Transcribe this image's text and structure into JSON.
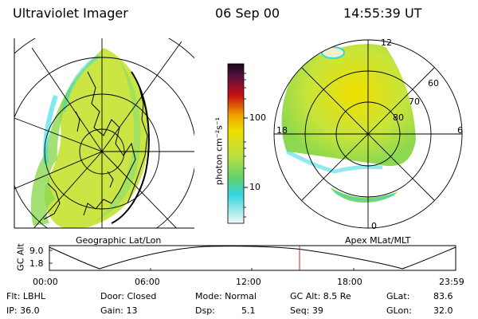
{
  "header": {
    "instrument": "Ultraviolet Imager",
    "date": "06 Sep 00",
    "time": "14:55:39 UT"
  },
  "colorbar": {
    "unit_label": "photon cm⁻²s⁻¹",
    "ticks": [
      "100",
      "10"
    ],
    "colors": {
      "top": "#1a0a1a",
      "red": "#c81010",
      "orange": "#f0a000",
      "yellow": "#f0e000",
      "green": "#b8e040",
      "cyan": "#30d8e0",
      "white": "#e8f4f4"
    }
  },
  "left_map": {
    "caption": "Geographic Lat/Lon"
  },
  "right_map": {
    "caption": "Apex MLat/MLT",
    "mlt_labels": {
      "top": "12",
      "left": "18",
      "right": "6",
      "bottom": "0"
    },
    "lat_labels": [
      "60",
      "70",
      "80"
    ]
  },
  "altitude_strip": {
    "axis_label": "GC Alt",
    "y_ticks": [
      "9.0",
      "1.8"
    ],
    "x_ticks": [
      "00:00",
      "06:00",
      "12:00",
      "18:00",
      "23:59"
    ],
    "marker_color": "#d02020"
  },
  "info": {
    "filter": "Flt: LBHL",
    "ip": "IP: 36.0",
    "door": "Door: Closed",
    "gain": "Gain: 13",
    "mode": "Mode: Normal",
    "dsp_label": "Dsp:",
    "dsp_value": "5.1",
    "gc_alt": "GC Alt: 8.5 Re",
    "seq": "Seq: 39",
    "glat_label": "GLat:",
    "glat_value": "83.6",
    "glon_label": "GLon:",
    "glon_value": "32.0"
  }
}
